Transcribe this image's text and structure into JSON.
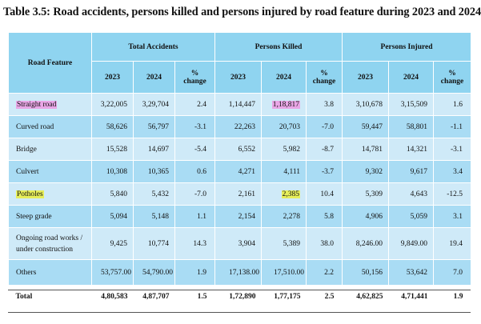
{
  "title": "Table 3.5: Road accidents, persons killed and persons injured by road feature during 2023 and 2024",
  "header": {
    "feature": "Road Feature",
    "groups": [
      "Total Accidents",
      "Persons Killed",
      "Persons Injured"
    ],
    "y2023": "2023",
    "y2024": "2024",
    "pct_line1": "%",
    "pct_line2": "change"
  },
  "rows": [
    {
      "feature": "Straight road",
      "ta23": "3,22,005",
      "ta24": "3,29,704",
      "ta_pct": "2.4",
      "pk23": "1,14,447",
      "pk24": "1,18,817",
      "pk_pct": "3.8",
      "pi23": "3,10,678",
      "pi24": "3,15,509",
      "pi_pct": "1.6"
    },
    {
      "feature": "Curved road",
      "ta23": "58,626",
      "ta24": "56,797",
      "ta_pct": "-3.1",
      "pk23": "22,263",
      "pk24": "20,703",
      "pk_pct": "-7.0",
      "pi23": "59,447",
      "pi24": "58,801",
      "pi_pct": "-1.1"
    },
    {
      "feature": "Bridge",
      "ta23": "15,528",
      "ta24": "14,697",
      "ta_pct": "-5.4",
      "pk23": "6,552",
      "pk24": "5,982",
      "pk_pct": "-8.7",
      "pi23": "14,781",
      "pi24": "14,321",
      "pi_pct": "-3.1"
    },
    {
      "feature": "Culvert",
      "ta23": "10,308",
      "ta24": "10,365",
      "ta_pct": "0.6",
      "pk23": "4,271",
      "pk24": "4,111",
      "pk_pct": "-3.7",
      "pi23": "9,302",
      "pi24": "9,617",
      "pi_pct": "3.4"
    },
    {
      "feature": "Potholes",
      "ta23": "5,840",
      "ta24": "5,432",
      "ta_pct": "-7.0",
      "pk23": "2,161",
      "pk24": "2,385",
      "pk_pct": "10.4",
      "pi23": "5,309",
      "pi24": "4,643",
      "pi_pct": "-12.5"
    },
    {
      "feature": "Steep grade",
      "ta23": "5,094",
      "ta24": "5,148",
      "ta_pct": "1.1",
      "pk23": "2,154",
      "pk24": "2,278",
      "pk_pct": "5.8",
      "pi23": "4,906",
      "pi24": "5,059",
      "pi_pct": "3.1"
    },
    {
      "feature_line1": "Ongoing road works /",
      "feature_line2": "under construction",
      "ta23": "9,425",
      "ta24": "10,774",
      "ta_pct": "14.3",
      "pk23": "3,904",
      "pk24": "5,389",
      "pk_pct": "38.0",
      "pi23": "8,246.00",
      "pi24": "9,849.00",
      "pi_pct": "19.4"
    },
    {
      "feature": "Others",
      "ta23": "53,757.00",
      "ta24": "54,790.00",
      "ta_pct": "1.9",
      "pk23": "17,138.00",
      "pk24": "17,510.00",
      "pk_pct": "2.2",
      "pi23": "50,156",
      "pi24": "53,642",
      "pi_pct": "7.0"
    }
  ],
  "total": {
    "feature": "Total",
    "ta23": "4,80,583",
    "ta24": "4,87,707",
    "ta_pct": "1.5",
    "pk23": "1,72,890",
    "pk24": "1,77,175",
    "pk_pct": "2.5",
    "pi23": "4,62,825",
    "pi24": "4,71,441",
    "pi_pct": "1.9"
  },
  "colors": {
    "header_bg": "#8fd4f0",
    "row_light": "#cfeaf8",
    "row_dark": "#a9dcf4",
    "highlight_pink": "#e9a6e6",
    "highlight_yellow": "#e6ee5a"
  }
}
